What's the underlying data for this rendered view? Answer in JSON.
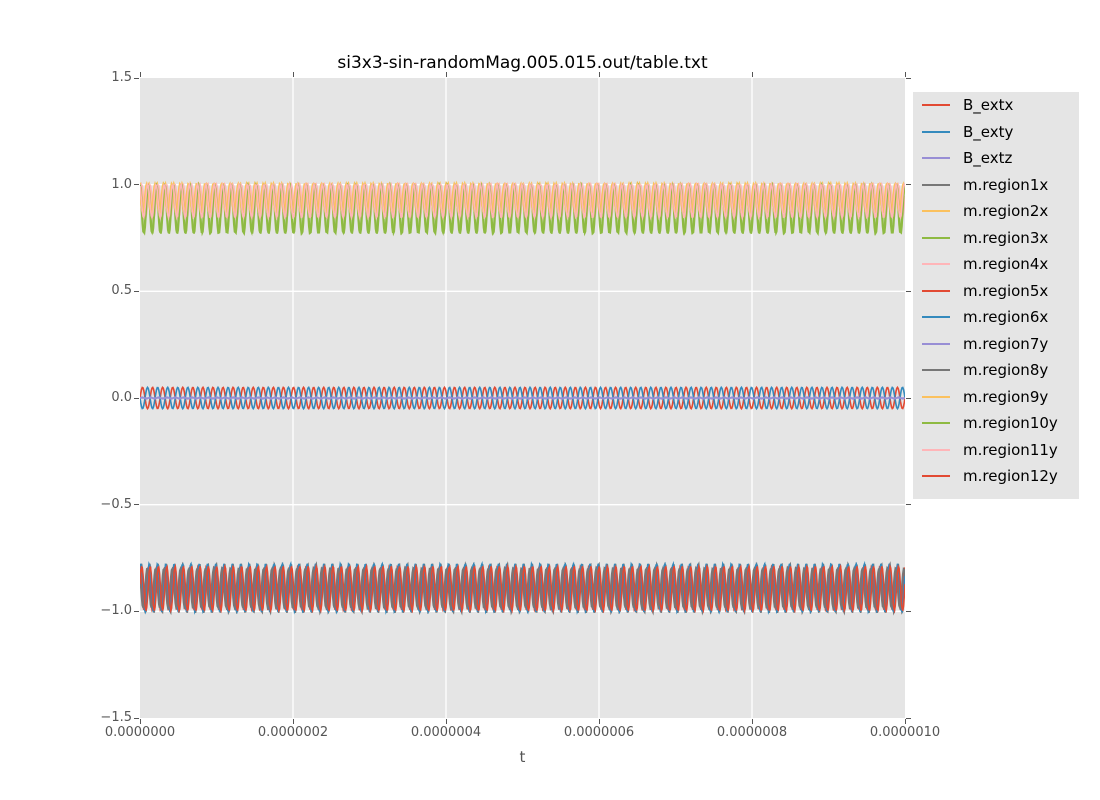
{
  "chart_data": {
    "type": "line",
    "title": "si3x3-sin-randomMag.005.015.out/table.txt",
    "xlabel": "t",
    "ylabel": "",
    "xlim": [
      0,
      1e-06
    ],
    "ylim": [
      -1.5,
      1.5
    ],
    "grid": true,
    "background_color": "#E5E5E5",
    "gridline_color": "#FFFFFF",
    "tick_color": "#555555",
    "legend_position": "right-outside",
    "xtick_labels": [
      "0.0000000",
      "0.0000002",
      "0.0000004",
      "0.0000006",
      "0.0000008",
      "0.0000010"
    ],
    "ytick_labels": [
      "1.5",
      "1.0",
      "0.5",
      "0.0",
      "−0.5",
      "−1.0",
      "−1.5"
    ],
    "description": "Three dense oscillation bands: magnetization x-components of regions 2,3,4,9y,10y,11y oscillate between ~0.78 and ~1.0; external field B_extx and B_exty oscillate between -0.05 and +0.05 with B_extz and m.region7y flat at 0; magnetization of regions 1x,5x,6x,8y,12y oscillate between ~-0.78 and ~-1.0",
    "series": [
      {
        "name": "B_extx",
        "color": "#E24A33",
        "center": 0.0,
        "amplitude": 0.05,
        "cycles": 76,
        "phase": 0.0
      },
      {
        "name": "B_exty",
        "color": "#348ABD",
        "center": 0.0,
        "amplitude": 0.05,
        "cycles": 76,
        "phase": 3.14159
      },
      {
        "name": "B_extz",
        "color": "#988ED5",
        "center": 0.0,
        "amplitude": 0.0,
        "cycles": 76,
        "phase": 0.0
      },
      {
        "name": "m.region1x",
        "color": "#777777",
        "center": -0.892,
        "amplitude": 0.115,
        "cycles": 92,
        "phase": 0.5
      },
      {
        "name": "m.region2x",
        "color": "#FBC15E",
        "center": 0.935,
        "amplitude": 0.072,
        "cycles": 92,
        "phase": 1.2
      },
      {
        "name": "m.region3x",
        "color": "#8EBA42",
        "center": 0.888,
        "amplitude": 0.115,
        "cycles": 92,
        "phase": 2.1
      },
      {
        "name": "m.region4x",
        "color": "#FFB5B8",
        "center": 0.925,
        "amplitude": 0.076,
        "cycles": 92,
        "phase": 0.3
      },
      {
        "name": "m.region5x",
        "color": "#E24A33",
        "center": -0.893,
        "amplitude": 0.1,
        "cycles": 92,
        "phase": 1.8
      },
      {
        "name": "m.region6x",
        "color": "#348ABD",
        "center": -0.89,
        "amplitude": 0.113,
        "cycles": 92,
        "phase": 0.9
      },
      {
        "name": "m.region7y",
        "color": "#988ED5",
        "center": 0.0,
        "amplitude": 0.004,
        "cycles": 92,
        "phase": 0.0
      },
      {
        "name": "m.region8y",
        "color": "#777777",
        "center": -0.891,
        "amplitude": 0.092,
        "cycles": 92,
        "phase": 2.5
      },
      {
        "name": "m.region9y",
        "color": "#FBC15E",
        "center": 0.936,
        "amplitude": 0.07,
        "cycles": 92,
        "phase": 2.8
      },
      {
        "name": "m.region10y",
        "color": "#8EBA42",
        "center": 0.885,
        "amplitude": 0.115,
        "cycles": 92,
        "phase": 1.5
      },
      {
        "name": "m.region11y",
        "color": "#FFB5B8",
        "center": 0.923,
        "amplitude": 0.078,
        "cycles": 92,
        "phase": 2.0
      },
      {
        "name": "m.region12y",
        "color": "#E24A33",
        "center": -0.893,
        "amplitude": 0.104,
        "cycles": 92,
        "phase": 0.2
      }
    ]
  }
}
